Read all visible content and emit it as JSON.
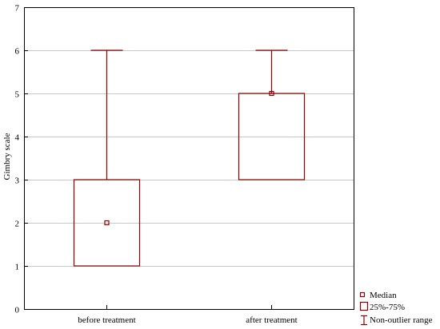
{
  "chart_data": {
    "type": "boxplot",
    "ylabel": "Gimbry scale",
    "ylim": [
      0,
      7
    ],
    "yticks": [
      0,
      1,
      2,
      3,
      4,
      5,
      6,
      7
    ],
    "grid": true,
    "legend_position": "bottom-right",
    "categories": [
      "before treatment",
      "after treatment"
    ],
    "boxes": [
      {
        "category": "before treatment",
        "median": 2,
        "q1": 1,
        "q3": 3,
        "whisker_low": 1,
        "whisker_high": 6
      },
      {
        "category": "after treatment",
        "median": 5,
        "q1": 3,
        "q3": 5,
        "whisker_low": 3,
        "whisker_high": 6
      }
    ],
    "legend": {
      "median": "Median",
      "box": "25%-75%",
      "whisker": "Non-outlier range"
    },
    "colors": {
      "box": "#8b0000",
      "grid": "#c8c8c8",
      "axis": "#000000"
    }
  }
}
